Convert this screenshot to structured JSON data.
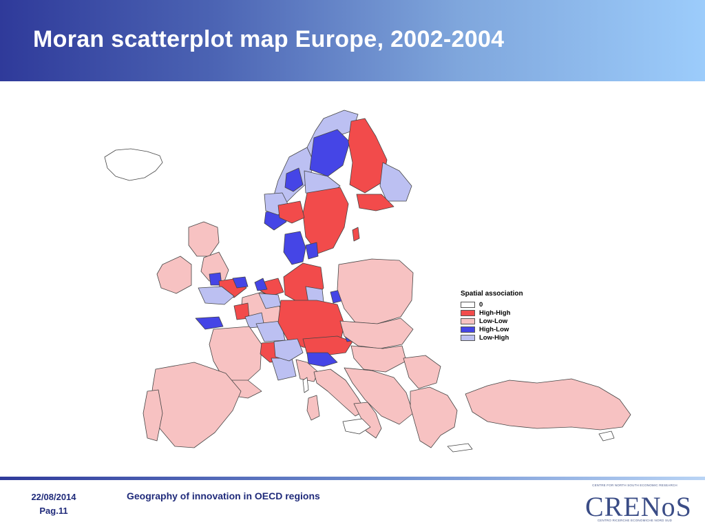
{
  "slide": {
    "title": "Moran scatterplot map Europe, 2002-2004"
  },
  "legend": {
    "title": "Spatial association",
    "items": [
      {
        "label": "0",
        "color": "#ffffff"
      },
      {
        "label": "High-High",
        "color": "#f24b4b"
      },
      {
        "label": "Low-Low",
        "color": "#f7c2c2"
      },
      {
        "label": "High-Low",
        "color": "#4545e6"
      },
      {
        "label": "Low-High",
        "color": "#bcc0f2"
      }
    ]
  },
  "map": {
    "region_colors": {
      "zero": "#ffffff",
      "high_high": "#f24b4b",
      "low_low": "#f7c2c2",
      "high_low": "#4545e6",
      "low_high": "#bcc0f2",
      "border": "#444444"
    }
  },
  "footer": {
    "date": "22/08/2014",
    "page": "Pag.11",
    "subtitle": "Geography of innovation in OECD regions"
  },
  "logo": {
    "top_text": "CENTRE FOR NORTH SOUTH ECONOMIC RESEARCH",
    "name": "CRENoS",
    "bottom_text": "CENTRO RICERCHE ECONOMICHE NORD SUD"
  }
}
